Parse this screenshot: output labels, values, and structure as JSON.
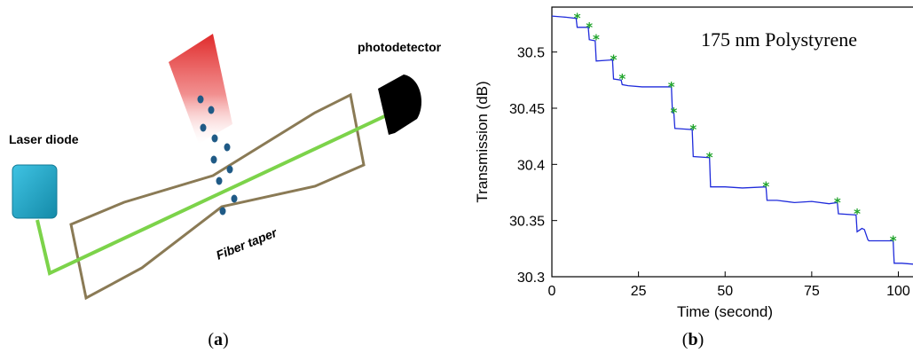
{
  "panel_a": {
    "caption": "(a)",
    "caption_letter": "a",
    "labels": {
      "laser": "Laser diode",
      "detector": "photodetector",
      "taper": "Fiber taper"
    },
    "colors": {
      "laser_box": "#1ba3c6",
      "fiber": "#7cd34a",
      "taper_outline": "#8a7a55",
      "particles": "#1f5a86",
      "detector": "#000000",
      "source_beam": "#e02a2a"
    }
  },
  "panel_b": {
    "caption": "(b)",
    "caption_letter": "b",
    "chart_data": {
      "type": "line",
      "title": "175 nm Polystyrene",
      "xlabel": "Time (second)",
      "ylabel": "Transmission (dB)",
      "xlim": [
        0,
        105
      ],
      "ylim": [
        30.3,
        30.54
      ],
      "xticks": [
        0,
        25,
        50,
        75,
        100
      ],
      "yticks": [
        30.3,
        30.35,
        30.4,
        30.45,
        30.5
      ],
      "xtick_labels": [
        "0",
        "25",
        "50",
        "75",
        "100"
      ],
      "ytick_labels": [
        "30.3",
        "30.35",
        "30.4",
        "30.45",
        "30.5"
      ],
      "series": [
        {
          "color": "#1f2bdb",
          "x": [
            0,
            4,
            7,
            7.3,
            10.5,
            10.8,
            12.5,
            12.8,
            17.5,
            17.8,
            20,
            20.3,
            22,
            26,
            30,
            34.5,
            34.8,
            35.2,
            35.5,
            40.5,
            40.8,
            45.5,
            45.8,
            50,
            55,
            61.8,
            62.1,
            65,
            70,
            75,
            80,
            82.4,
            82.7,
            87.8,
            88.1,
            89.5,
            90.2,
            91.2,
            91.5,
            98.5,
            98.8,
            101,
            105
          ],
          "y": [
            30.532,
            30.531,
            30.53,
            30.522,
            30.522,
            30.511,
            30.51,
            30.492,
            30.493,
            30.476,
            30.475,
            30.471,
            30.47,
            30.469,
            30.469,
            30.469,
            30.446,
            30.446,
            30.432,
            30.431,
            30.407,
            30.406,
            30.38,
            30.38,
            30.379,
            30.38,
            30.368,
            30.368,
            30.366,
            30.367,
            30.365,
            30.366,
            30.356,
            30.355,
            30.34,
            30.343,
            30.342,
            30.333,
            30.332,
            30.332,
            30.312,
            30.312,
            30.311
          ]
        }
      ],
      "step_markers": {
        "color": "#1fa32a",
        "x": [
          7.3,
          10.8,
          12.8,
          17.8,
          20.3,
          34.5,
          35.2,
          40.8,
          45.5,
          61.8,
          82.4,
          88.1,
          98.5
        ],
        "y": [
          30.53,
          30.522,
          30.511,
          30.493,
          30.476,
          30.469,
          30.446,
          30.431,
          30.406,
          30.38,
          30.366,
          30.356,
          30.332
        ]
      }
    }
  }
}
